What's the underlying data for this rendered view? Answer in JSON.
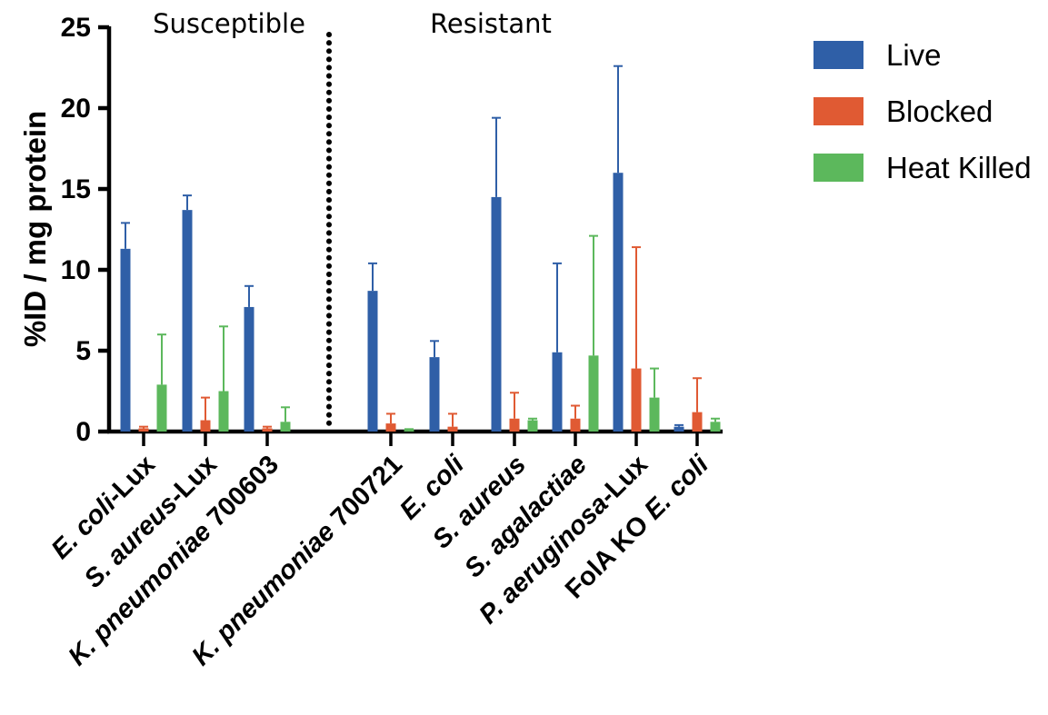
{
  "chart_data": {
    "type": "bar",
    "ylabel": "%ID / mg protein",
    "ylim": [
      0,
      25
    ],
    "yticks": [
      0,
      5,
      10,
      15,
      20,
      25
    ],
    "groups": [
      {
        "label": "Susceptible",
        "categories": 3
      },
      {
        "label": "Resistant",
        "categories": 6
      }
    ],
    "categories": [
      {
        "italic": "E. coli",
        "suffix": "-Lux"
      },
      {
        "italic": "S. aureus",
        "suffix": "-Lux"
      },
      {
        "italic": "K. pneumoniae",
        "suffix": " 700603"
      },
      {
        "italic": "K. pneumoniae",
        "suffix": " 700721"
      },
      {
        "italic": "E. coli",
        "suffix": ""
      },
      {
        "italic": "S. aureus",
        "suffix": ""
      },
      {
        "italic": "S. agalactiae",
        "suffix": ""
      },
      {
        "italic": "P. aeruginosa",
        "suffix": "-Lux"
      },
      {
        "prefix": "FolA KO ",
        "italic": "E. coli",
        "suffix": ""
      }
    ],
    "series": [
      {
        "name": "Live",
        "color": "#2f5fa7",
        "values": [
          11.3,
          13.7,
          7.7,
          8.7,
          4.6,
          14.5,
          4.9,
          16.0,
          0.3
        ],
        "errors": [
          1.6,
          0.9,
          1.3,
          1.7,
          1.0,
          4.9,
          5.5,
          6.6,
          0.1
        ]
      },
      {
        "name": "Blocked",
        "color": "#e05a33",
        "values": [
          0.2,
          0.7,
          0.2,
          0.5,
          0.3,
          0.8,
          0.8,
          3.9,
          1.2
        ],
        "errors": [
          0.1,
          1.4,
          0.1,
          0.6,
          0.8,
          1.6,
          0.8,
          7.5,
          2.1
        ]
      },
      {
        "name": "Heat Killed",
        "color": "#5cb85c",
        "values": [
          2.9,
          2.5,
          0.6,
          0.1,
          0.0,
          0.7,
          4.7,
          2.1,
          0.6
        ],
        "errors": [
          3.1,
          4.0,
          0.9,
          0.05,
          0.0,
          0.1,
          7.4,
          1.8,
          0.2
        ]
      }
    ],
    "legend": "top-right"
  }
}
